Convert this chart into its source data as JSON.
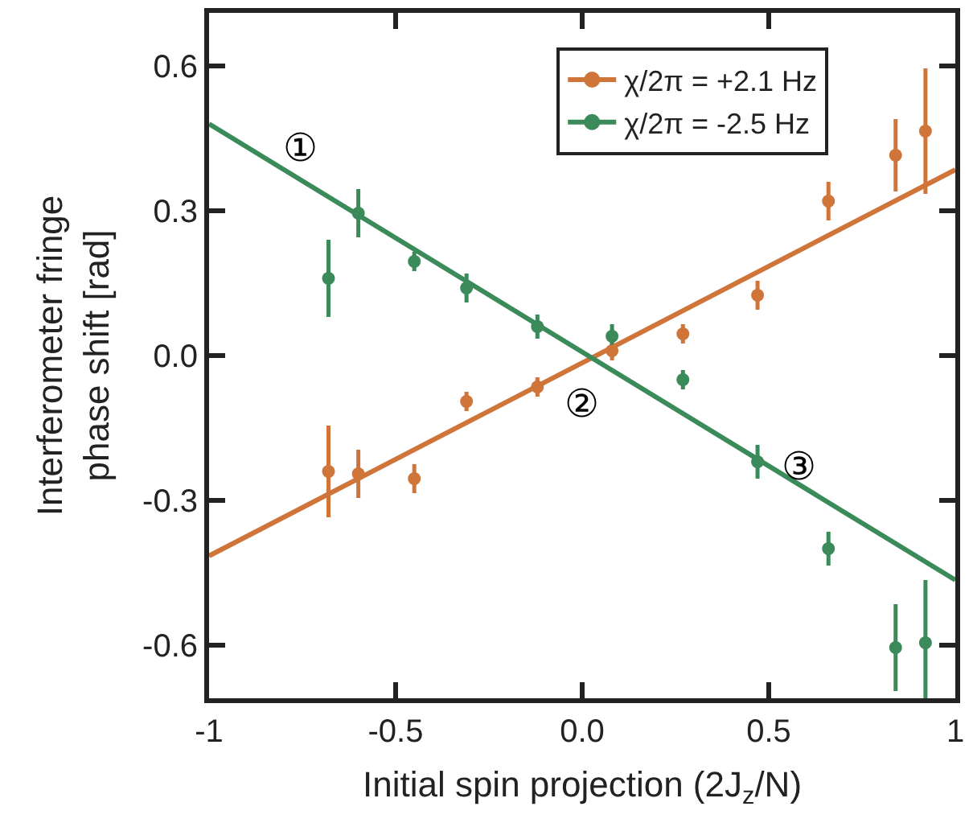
{
  "chart_data": {
    "type": "scatter",
    "xlabel": "Initial spin projection (2J$_{z}$/N)",
    "ylabel": "Interferometer fringe\nphase shift [rad]",
    "xlim": [
      -1,
      1
    ],
    "ylim": [
      -0.71,
      0.71
    ],
    "xticks": [
      -1,
      -0.5,
      {
        "value": 0,
        "label": "0.0"
      },
      0.5,
      1
    ],
    "yticks": [
      -0.6,
      -0.3,
      {
        "value": 0,
        "label": "0.0"
      },
      0.3,
      0.6
    ],
    "marker": "circle",
    "legend": "top right",
    "series": [
      {
        "name": "χ/2π = +2.1 Hz",
        "color": "#d0753a",
        "x": [
          -0.68,
          -0.6,
          -0.45,
          -0.31,
          -0.12,
          0.08,
          0.27,
          0.47,
          0.66,
          0.84,
          0.92
        ],
        "values": [
          -0.24,
          -0.245,
          -0.255,
          -0.095,
          -0.065,
          0.01,
          0.045,
          0.125,
          0.32,
          0.415,
          0.465
        ],
        "errors": [
          0.095,
          0.05,
          0.03,
          0.02,
          0.02,
          0.02,
          0.02,
          0.03,
          0.04,
          0.075,
          0.13
        ]
      },
      {
        "name": "χ/2π = -2.5 Hz",
        "color": "#3a8a5a",
        "x": [
          -0.68,
          -0.6,
          -0.45,
          -0.31,
          -0.12,
          0.08,
          0.27,
          0.47,
          0.66,
          0.84,
          0.92
        ],
        "values": [
          0.16,
          0.295,
          0.195,
          0.14,
          0.06,
          0.04,
          -0.05,
          -0.22,
          -0.4,
          -0.605,
          -0.595
        ],
        "errors": [
          0.08,
          0.05,
          0.02,
          0.03,
          0.025,
          0.025,
          0.02,
          0.035,
          0.035,
          0.09,
          0.13
        ]
      },
      {
        "type": "line",
        "marker": "none",
        "color": "#d0753a",
        "x": [
          -1,
          1
        ],
        "values": [
          -0.415,
          0.385
        ]
      },
      {
        "type": "line",
        "marker": "none",
        "color": "#3a8a5a",
        "x": [
          -1,
          1
        ],
        "values": [
          0.48,
          -0.465
        ]
      }
    ],
    "annotations": [
      "①",
      "②",
      "③"
    ]
  }
}
